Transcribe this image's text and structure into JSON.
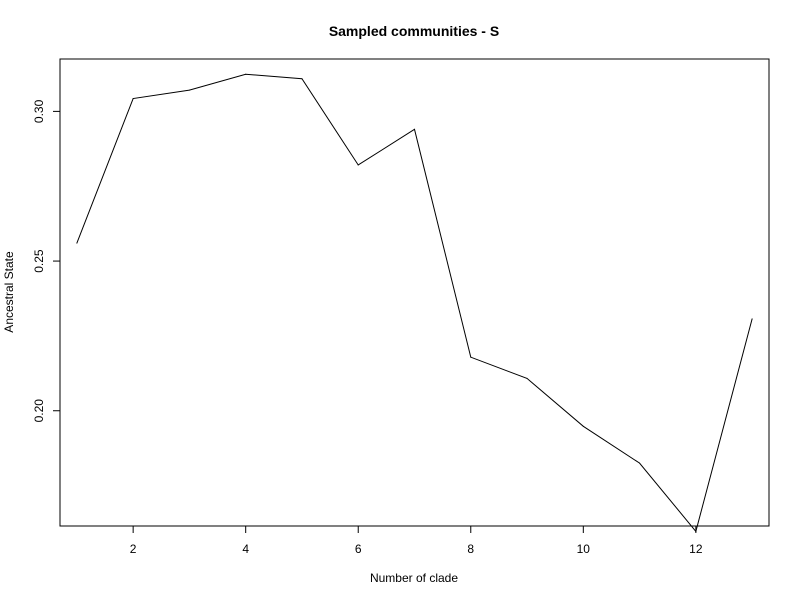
{
  "chart_data": {
    "type": "line",
    "title": "Sampled communities - S",
    "xlabel": "Number of clade",
    "ylabel": "Ancestral State",
    "xlim": [
      0.7,
      13.3
    ],
    "ylim": [
      0.1615,
      0.3175
    ],
    "xticks": [
      2,
      4,
      6,
      8,
      10,
      12
    ],
    "xtick_labels": [
      "2",
      "4",
      "6",
      "8",
      "10",
      "12"
    ],
    "yticks": [
      0.2,
      0.25,
      0.3
    ],
    "ytick_labels": [
      "0.20",
      "0.25",
      "0.30"
    ],
    "grid": false,
    "series": [
      {
        "x": [
          1,
          2,
          3,
          4,
          5,
          6,
          7,
          8,
          9,
          10,
          11,
          12,
          13
        ],
        "values": [
          0.256,
          0.3043,
          0.3071,
          0.3124,
          0.3109,
          0.2821,
          0.294,
          0.2179,
          0.2108,
          0.1948,
          0.1825,
          0.1597,
          0.2307
        ],
        "color": "#000000"
      }
    ]
  }
}
